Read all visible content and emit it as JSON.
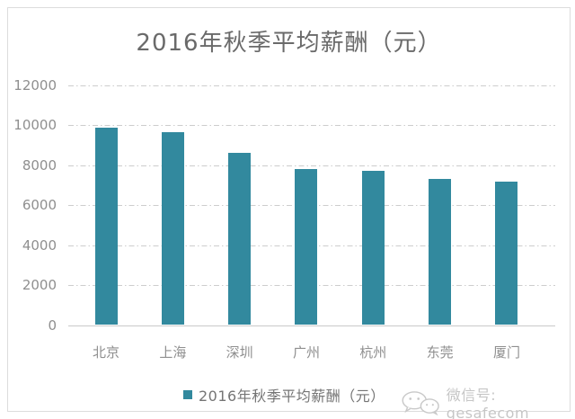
{
  "chart_data": {
    "type": "bar",
    "title": "2016年秋季平均薪酬（元）",
    "categories": [
      "北京",
      "上海",
      "深圳",
      "广州",
      "杭州",
      "东莞",
      "厦门"
    ],
    "values": [
      9886,
      9642,
      8623,
      7809,
      7733,
      7297,
      7167
    ],
    "series": [
      {
        "name": "2016年秋季平均薪酬（元）",
        "values": [
          9886,
          9642,
          8623,
          7809,
          7733,
          7297,
          7167
        ]
      }
    ],
    "xlabel": "",
    "ylabel": "",
    "ylim": [
      0,
      12000
    ],
    "yticks": [
      0,
      2000,
      4000,
      6000,
      8000,
      10000,
      12000
    ],
    "grid": true,
    "grid_style": "dash-dot",
    "legend_position": "bottom",
    "legend": [
      "2016年秋季平均薪酬（元）"
    ],
    "bar_color": "#32899e"
  },
  "legend": {
    "label": "2016年秋季平均薪酬（元）"
  },
  "watermark": {
    "icon": "wechat-icon",
    "text": "微信号: gesafecom"
  },
  "colors": {
    "bar": "#32899e",
    "title_text": "#6a6a6a",
    "axis_text": "#8f8f8f",
    "gridline": "#cdcdcd",
    "axis_line": "#c9c9c9",
    "box_border": "#dcdcdc",
    "watermark": "#c6c6c6"
  }
}
